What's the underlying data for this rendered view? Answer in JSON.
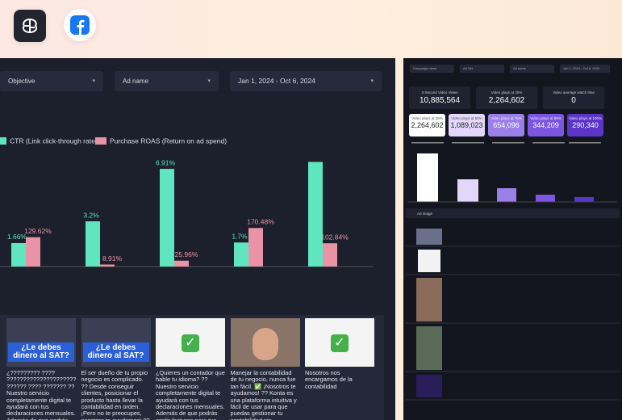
{
  "left_dashboard": {
    "filters": [
      "Objective",
      "Ad name",
      "Jan 1, 2024 - Oct 6, 2024"
    ],
    "chart": {
      "type": "bar",
      "series": [
        {
          "name": "CTR (Link click-through rate)",
          "color": "#5fe6c1",
          "values": [
            1.66,
            3.2,
            6.91,
            1.7,
            7.4
          ],
          "value_labels": [
            "1.66%",
            "3.2%",
            "6.91%",
            "1.7%",
            null
          ]
        },
        {
          "name": "Purchase ROAS (Return on ad spend)",
          "color": "#e994a6",
          "axis": "y2",
          "values": [
            129.62,
            8.91,
            25.96,
            170.48,
            102.84
          ],
          "value_labels": [
            "129.62%",
            "8.91%",
            "25.96%",
            "170.48%",
            "102.84%"
          ]
        }
      ],
      "ylim": [
        0,
        8
      ],
      "y2lim": [
        0,
        500
      ]
    },
    "ads": [
      {
        "thumbnail_text": "¿Le debes dinero al SAT?",
        "text": "¿????????? ???? ????????????????????? ?????? ???? ??????? ?? Nuestro servicio completamente digital te ayudará con tus declaraciones mensuales. Además de que podrás emitir facturas para tus clientes"
      },
      {
        "thumbnail_text": "¿Le debes dinero al SAT?",
        "text": "El ser dueño de tu propio negocio es complicado. ?? Desde conseguir clientes, posicionar el producto hasta llevar la contabilidad en orden. ¡Pero no te preocupes, nosotros te ayudamos! ?? Manejar la contabilidad de tu negocio, nunca fue tan fácil."
      },
      {
        "text": "¿Quieres un contador que hable tu idioma? ?? Nuestro servicio completamente digital te ayudará con tus declaraciones mensuales. Además de que podrás emitir facturas para tus clientes ¡ilimitadamente!"
      },
      {
        "text": "Manejar la contabilidad de tu negocio, nunca fue tan fácil. ✅ ¡Nosotros te ayudamos! ?? Konta es una plataforma intuitiva y fácil de usar para que puedas gestionar tu contabilidad sin complicaciones. ¡Únete a Konta. el contador de los"
      },
      {
        "text": "Nosotros nos encargamos de la contabilidad"
      }
    ]
  },
  "right_dashboard": {
    "filters": [
      "Campaign name",
      "Ad Set",
      "Ad name",
      "Jan 1, 2024 - Oct 6, 2024"
    ],
    "kpis": [
      {
        "label": "3-Second Video Views",
        "value": "10,885,564"
      },
      {
        "label": "Video plays at 25%",
        "value": "2,264,602"
      },
      {
        "label": "Video average watch time",
        "value": "0"
      }
    ],
    "video_plays": [
      {
        "label": "Video plays at 25%",
        "value": "2,264,602"
      },
      {
        "label": "Video plays at 50%",
        "value": "1,089,023"
      },
      {
        "label": "Video plays at 75%",
        "value": "654,096"
      },
      {
        "label": "Video plays at 95%",
        "value": "344,209"
      },
      {
        "label": "Video plays at 100%",
        "value": "290,340"
      }
    ],
    "table_header": "Ad image"
  }
}
